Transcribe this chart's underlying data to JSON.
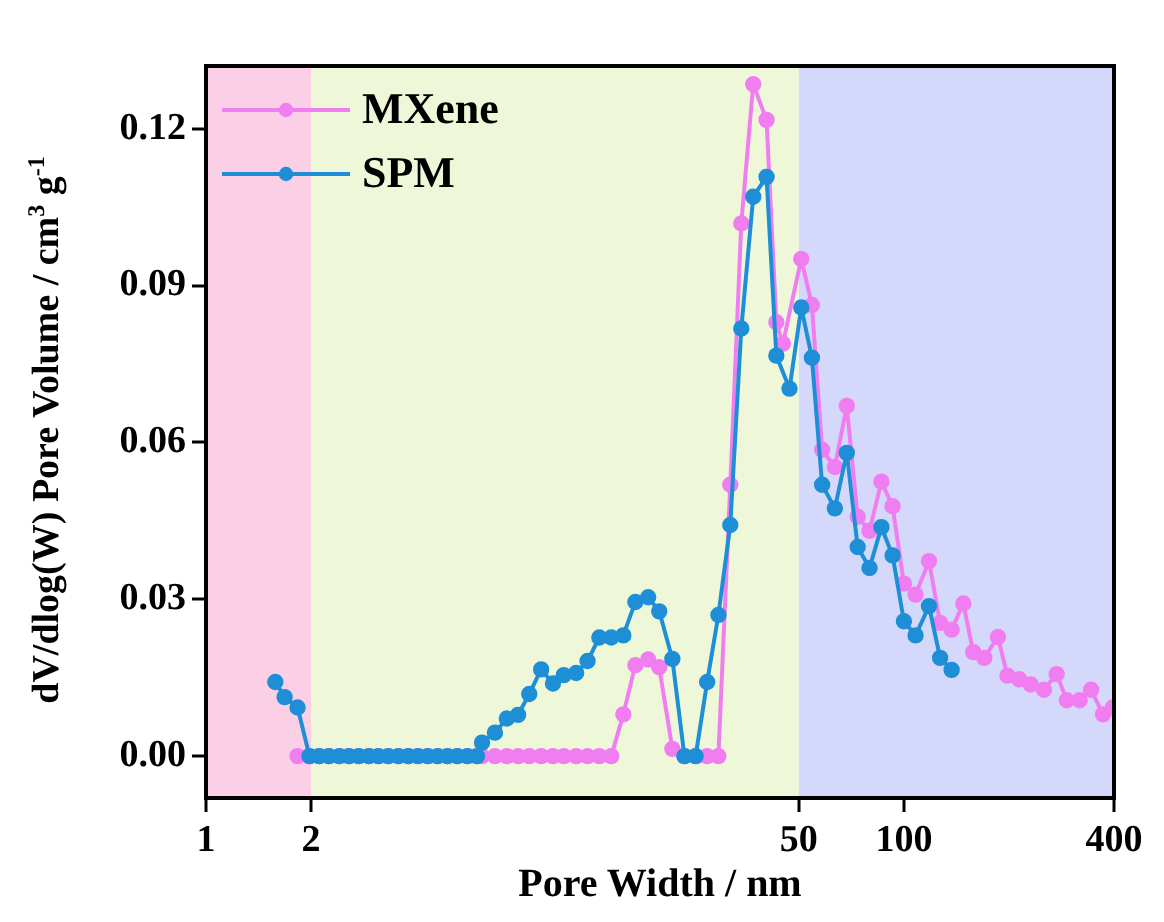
{
  "chart_data": {
    "type": "line",
    "xlabel": "Pore Width / nm",
    "ylabel": "dV/dlog(W) Pore Volume / cm$^{3}$ g$^{-1}$",
    "log": "x",
    "xlim": [
      1,
      400
    ],
    "xticks": [
      1,
      2,
      50,
      100,
      400
    ],
    "ylim": [
      -0.008,
      0.132
    ],
    "yticks": [
      {
        "value": 0,
        "label": "0.00"
      },
      {
        "value": 0.03,
        "label": "0.03"
      },
      {
        "value": 0.06,
        "label": "0.06"
      },
      {
        "value": 0.09,
        "label": "0.09"
      },
      {
        "value": 0.12,
        "label": "0.12"
      }
    ],
    "grid": false,
    "legend": "top left",
    "marker": "circle",
    "line_style": "solid",
    "bands": [
      {
        "axis": "x",
        "from": 1,
        "to": 2,
        "color": "#fbd0e6"
      },
      {
        "axis": "x",
        "from": 2,
        "to": 50,
        "color": "#eef8d9"
      },
      {
        "axis": "x",
        "from": 50,
        "to": 400,
        "color": "#d4d9fb"
      }
    ],
    "series": [
      {
        "name": "MXene",
        "color": "#f07ef0",
        "x": [
          1.83,
          1.98,
          2.11,
          2.25,
          2.41,
          2.57,
          2.74,
          2.93,
          3.12,
          3.33,
          3.56,
          3.8,
          4.05,
          4.32,
          4.61,
          4.92,
          5.25,
          5.61,
          5.98,
          6.18,
          6.73,
          7.28,
          7.84,
          8.44,
          9.13,
          9.87,
          10.6,
          11.5,
          12.4,
          13.4,
          14.5,
          15.7,
          17.0,
          18.5,
          19.9,
          21.7,
          23.5,
          25.3,
          27.3,
          29.4,
          31.8,
          34.2,
          37.0,
          40.4,
          43.1,
          45.0,
          50.8,
          54.5,
          58.3,
          63.4,
          68.6,
          73.7,
          79.7,
          86.2,
          92.8,
          100,
          108,
          118,
          127,
          137,
          148,
          158,
          170,
          186,
          198,
          214,
          231,
          252,
          274,
          293,
          319,
          344,
          372,
          397
        ],
        "values": [
          0,
          0,
          0,
          0,
          0,
          0,
          0,
          0,
          0,
          0,
          0,
          0,
          0,
          0,
          0,
          0,
          0,
          0,
          0,
          0,
          0,
          0,
          0,
          0,
          0,
          0,
          0,
          0,
          0,
          0,
          0,
          0.008,
          0.0174,
          0.0185,
          0.017,
          0.0014,
          0,
          0,
          0,
          0,
          0.0519,
          0.1019,
          0.1285,
          0.1217,
          0.083,
          0.0789,
          0.0951,
          0.0863,
          0.0586,
          0.0553,
          0.067,
          0.0458,
          0.0431,
          0.0525,
          0.0478,
          0.033,
          0.0309,
          0.0373,
          0.0255,
          0.0242,
          0.0292,
          0.0199,
          0.0188,
          0.0228,
          0.0154,
          0.0147,
          0.0137,
          0.0127,
          0.0157,
          0.0107,
          0.0107,
          0.0127,
          0.008,
          0.0093
        ]
      },
      {
        "name": "SPM",
        "color": "#1e8fd6",
        "x": [
          1.58,
          1.68,
          1.83,
          1.98,
          2.11,
          2.25,
          2.41,
          2.57,
          2.74,
          2.93,
          3.12,
          3.33,
          3.56,
          3.8,
          4.05,
          4.32,
          4.61,
          4.92,
          5.25,
          5.61,
          5.98,
          6.18,
          6.73,
          7.28,
          7.84,
          8.44,
          9.13,
          9.87,
          10.6,
          11.5,
          12.4,
          13.4,
          14.5,
          15.7,
          17.0,
          18.5,
          19.9,
          21.7,
          23.5,
          25.3,
          27.3,
          29.4,
          31.8,
          34.2,
          37.0,
          40.4,
          43.1,
          47.0,
          50.8,
          54.5,
          58.3,
          63.4,
          68.6,
          73.7,
          79.7,
          86.2,
          92.8,
          100,
          108,
          118,
          127,
          137
        ],
        "values": [
          0.0142,
          0.0113,
          0.0093,
          0,
          0,
          0,
          0,
          0,
          0,
          0,
          0,
          0,
          0,
          0,
          0,
          0,
          0,
          0,
          0,
          0,
          0,
          0.0026,
          0.0045,
          0.0072,
          0.0079,
          0.0119,
          0.0166,
          0.0139,
          0.0155,
          0.0159,
          0.0182,
          0.0227,
          0.0227,
          0.0231,
          0.0295,
          0.0304,
          0.0277,
          0.0186,
          0,
          0,
          0.0142,
          0.027,
          0.0442,
          0.0818,
          0.107,
          0.1108,
          0.0766,
          0.0703,
          0.0858,
          0.0762,
          0.0519,
          0.0474,
          0.058,
          0.04,
          0.036,
          0.0438,
          0.0384,
          0.0258,
          0.0231,
          0.0287,
          0.0188,
          0.0165
        ]
      }
    ]
  }
}
